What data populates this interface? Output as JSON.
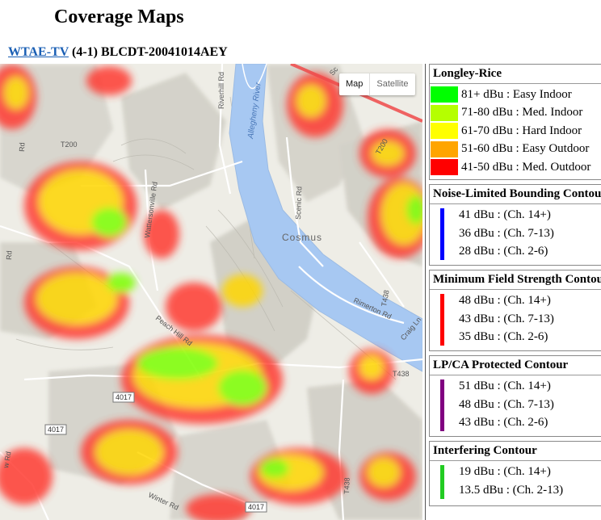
{
  "page": {
    "title": "Coverage Maps"
  },
  "station": {
    "callsign": "WTAE-TV",
    "channel": "(4-1)",
    "record": "BLCDT-20041014AEY"
  },
  "map": {
    "type_control": {
      "map_label": "Map",
      "satellite_label": "Satellite",
      "selected": "Map"
    },
    "labels": {
      "river": "Allegheny River",
      "place": "Cosmus",
      "riverhill": "Riverhill Rd",
      "t200a": "T200",
      "t200b": "T200",
      "wattersonville": "Wattersonville Rd",
      "scenic": "Scenic Rd",
      "rimerton": "Rimerton Rd",
      "craig": "Craig Ln",
      "t438a": "T438",
      "t438b": "T438",
      "t438c": "T438",
      "peachhill": "Peach Hill Rd",
      "r4017a": "4017",
      "r4017b": "4017",
      "r4017c": "4017",
      "winter": "Winter Rd",
      "rd1": "Rd",
      "rd2": "Rd",
      "wrd": "w Rd",
      "sc": "Sc"
    }
  },
  "legend": {
    "longley": {
      "title": "Longley-Rice",
      "items": [
        {
          "color": "#00ff00",
          "label": "81+ dBu : Easy Indoor"
        },
        {
          "color": "#b5ff00",
          "label": "71-80 dBu : Med. Indoor"
        },
        {
          "color": "#ffff00",
          "label": "61-70 dBu : Hard Indoor"
        },
        {
          "color": "#ffa500",
          "label": "51-60 dBu : Easy Outdoor"
        },
        {
          "color": "#ff0000",
          "label": "41-50 dBu : Med. Outdoor"
        }
      ]
    },
    "noise": {
      "title": "Noise-Limited Bounding Contour",
      "color": "#0000ff",
      "items": [
        "41 dBu : (Ch. 14+)",
        "36 dBu : (Ch. 7-13)",
        "28 dBu : (Ch. 2-6)"
      ]
    },
    "minfield": {
      "title": "Minimum Field Strength Contour",
      "color": "#ff0000",
      "items": [
        "48 dBu : (Ch. 14+)",
        "43 dBu : (Ch. 7-13)",
        "35 dBu : (Ch. 2-6)"
      ]
    },
    "lpca": {
      "title": "LP/CA Protected Contour",
      "color": "#800080",
      "items": [
        "51 dBu : (Ch. 14+)",
        "48 dBu : (Ch. 7-13)",
        "43 dBu : (Ch. 2-6)"
      ]
    },
    "interfering": {
      "title": "Interfering Contour",
      "color": "#22cc22",
      "items": [
        "19 dBu : (Ch. 14+)",
        "13.5 dBu : (Ch. 2-13)"
      ]
    }
  }
}
